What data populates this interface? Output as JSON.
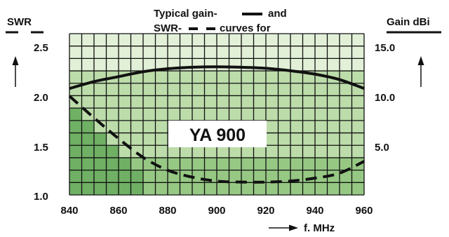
{
  "colors": {
    "grid_line": "#111111",
    "cell_top": "#e2f0d8",
    "cell_mid": "#bcdcaa",
    "cell_low": "#96c884",
    "cell_dark": "#6fb064",
    "curve": "#111111"
  },
  "chart_data": {
    "type": "line",
    "title_lines": [
      "Typical gain-",
      "SWR-",
      "and",
      "curves for"
    ],
    "center_label": "YA 900",
    "xlabel": "f. MHz",
    "ylabel_left": "SWR",
    "ylabel_right": "Gain dBi",
    "xlim": [
      840,
      960
    ],
    "x_ticks": [
      "840",
      "860",
      "880",
      "900",
      "920",
      "940",
      "960"
    ],
    "ylim_left": [
      1.0,
      2.6
    ],
    "y_ticks_left": [
      "2.5",
      "2.0",
      "1.5",
      "1.0"
    ],
    "ylim_right": [
      0,
      16
    ],
    "y_ticks_right": [
      "15.0",
      "10.0",
      "5.0"
    ],
    "grid": true,
    "series": [
      {
        "name": "gain",
        "axis": "right",
        "style": "solid",
        "x": [
          840,
          850,
          860,
          870,
          880,
          890,
          900,
          910,
          920,
          930,
          940,
          950,
          960
        ],
        "values": [
          10.8,
          11.5,
          12.0,
          12.5,
          12.8,
          12.95,
          13.0,
          12.95,
          12.85,
          12.6,
          12.25,
          11.7,
          10.8
        ]
      },
      {
        "name": "SWR",
        "axis": "left",
        "style": "dashed",
        "x": [
          840,
          850,
          860,
          870,
          880,
          890,
          900,
          910,
          920,
          930,
          940,
          950,
          960
        ],
        "values": [
          2.0,
          1.78,
          1.57,
          1.38,
          1.25,
          1.18,
          1.14,
          1.13,
          1.13,
          1.14,
          1.17,
          1.22,
          1.34
        ]
      }
    ]
  }
}
